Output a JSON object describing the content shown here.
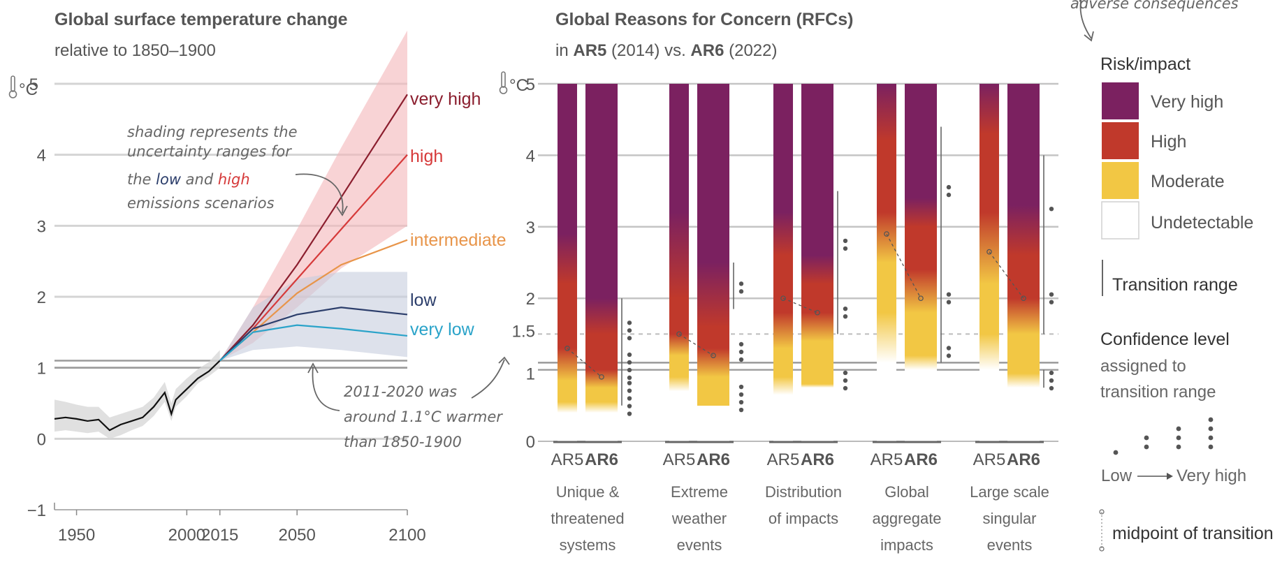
{
  "colors": {
    "very_high": "#7b2160",
    "high": "#c0392b",
    "moderate": "#f2c744",
    "undetectable": "#ffffff",
    "scen_very_high": "#8b1e2e",
    "scen_high": "#d63a3a",
    "scen_intermediate": "#e8954a",
    "scen_low": "#2c3e6b",
    "scen_very_low": "#2aa3c9",
    "historical": "#111111"
  },
  "top_right_note": "adverse consequences",
  "chart_data": [
    {
      "type": "line",
      "title": "Global surface temperature change",
      "subtitle": "relative to 1850–1900",
      "ylabel": "°C",
      "xlim": [
        1940,
        2100
      ],
      "ylim": [
        -1,
        5
      ],
      "xticks": [
        "1950",
        "2000",
        "2015",
        "2050",
        "2100"
      ],
      "yticks": [
        "5",
        "4",
        "3",
        "2",
        "1",
        "0",
        "−1"
      ],
      "ytick_values": [
        5,
        4,
        3,
        2,
        1,
        0,
        -1
      ],
      "xtick_values": [
        1950,
        2000,
        2015,
        2050,
        2100
      ],
      "historical": {
        "x": [
          1940,
          1945,
          1950,
          1955,
          1960,
          1965,
          1970,
          1975,
          1980,
          1985,
          1990,
          1993,
          1995,
          2000,
          2005,
          2010,
          2015
        ],
        "y": [
          0.28,
          0.3,
          0.28,
          0.25,
          0.27,
          0.12,
          0.2,
          0.25,
          0.3,
          0.45,
          0.65,
          0.35,
          0.55,
          0.7,
          0.85,
          0.95,
          1.1
        ],
        "band_low": [
          0.1,
          0.12,
          0.1,
          0.08,
          0.1,
          0.0,
          0.05,
          0.12,
          0.18,
          0.32,
          0.52,
          0.25,
          0.45,
          0.6,
          0.78,
          0.88,
          1.0
        ],
        "band_high": [
          0.55,
          0.52,
          0.48,
          0.45,
          0.45,
          0.3,
          0.35,
          0.4,
          0.45,
          0.58,
          0.8,
          0.5,
          0.7,
          0.85,
          0.98,
          1.08,
          1.25
        ]
      },
      "series": [
        {
          "name": "very high",
          "x": [
            2015,
            2030,
            2050,
            2070,
            2100
          ],
          "y": [
            1.1,
            1.6,
            2.45,
            3.4,
            4.85
          ]
        },
        {
          "name": "high",
          "x": [
            2015,
            2030,
            2050,
            2070,
            2100
          ],
          "y": [
            1.1,
            1.55,
            2.25,
            2.95,
            4.0
          ]
        },
        {
          "name": "intermediate",
          "x": [
            2015,
            2030,
            2050,
            2070,
            2100
          ],
          "y": [
            1.1,
            1.5,
            2.05,
            2.45,
            2.8
          ]
        },
        {
          "name": "low",
          "x": [
            2015,
            2030,
            2050,
            2070,
            2100
          ],
          "y": [
            1.1,
            1.55,
            1.75,
            1.85,
            1.75
          ]
        },
        {
          "name": "very low",
          "x": [
            2015,
            2030,
            2050,
            2070,
            2100
          ],
          "y": [
            1.1,
            1.5,
            1.6,
            1.55,
            1.45
          ]
        }
      ],
      "bands": [
        {
          "scenario": "very high/high",
          "x": [
            2015,
            2030,
            2050,
            2070,
            2100
          ],
          "low": [
            1.1,
            1.35,
            1.85,
            2.4,
            3.0
          ],
          "high": [
            1.1,
            1.85,
            2.95,
            4.1,
            5.75
          ]
        },
        {
          "scenario": "low/very low",
          "x": [
            2015,
            2030,
            2050,
            2070,
            2100
          ],
          "low": [
            1.1,
            1.25,
            1.3,
            1.25,
            1.15
          ],
          "high": [
            1.1,
            1.85,
            2.25,
            2.35,
            2.35
          ]
        }
      ],
      "reference_lines": [
        1.1,
        1.0
      ],
      "annotations": {
        "shading": [
          "shading represents the",
          "uncertainty ranges for",
          "the ",
          "low",
          " and ",
          "high",
          "emissions scenarios"
        ],
        "warming": [
          "2011-2020 was",
          "around 1.1°C warmer",
          "than 1850-1900"
        ]
      }
    },
    {
      "type": "bar",
      "title": "Global Reasons for Concern (RFCs)",
      "subtitle_parts": [
        "in ",
        "AR5",
        " (2014) vs. ",
        "AR6",
        " (2022)"
      ],
      "ylabel": "°C",
      "ylim": [
        0,
        5
      ],
      "yticks": [
        "5",
        "4",
        "3",
        "2",
        "1.5",
        "1",
        "0"
      ],
      "ytick_values": [
        5,
        4,
        3,
        2,
        1.5,
        1,
        0
      ],
      "bar_labels": [
        "AR5",
        "AR6"
      ],
      "categories": [
        {
          "name": [
            "Unique &",
            "threatened",
            "systems"
          ],
          "ar5": {
            "stops": [
              [
                0,
                "u"
              ],
              [
                0.4,
                "u"
              ],
              [
                0.55,
                "m"
              ],
              [
                0.85,
                "m"
              ],
              [
                1.3,
                "h"
              ],
              [
                2.2,
                "h"
              ],
              [
                2.9,
                "v"
              ],
              [
                5,
                "v"
              ]
            ],
            "midpoint": 1.3
          },
          "ar6": {
            "stops": [
              [
                0,
                "u"
              ],
              [
                0.4,
                "u"
              ],
              [
                0.55,
                "m"
              ],
              [
                0.75,
                "m"
              ],
              [
                1.0,
                "h"
              ],
              [
                1.5,
                "h"
              ],
              [
                2.0,
                "v"
              ],
              [
                5,
                "v"
              ]
            ],
            "midpoint": 0.9
          },
          "ranges": [
            [
              0.5,
              2.0
            ]
          ],
          "confidence": [
            [
              1.55,
              3
            ],
            [
              1.05,
              4
            ],
            [
              0.6,
              5
            ]
          ]
        },
        {
          "name": [
            "Extreme",
            "weather",
            "events"
          ],
          "ar5": {
            "stops": [
              [
                0,
                "u"
              ],
              [
                0.7,
                "u"
              ],
              [
                0.9,
                "m"
              ],
              [
                1.2,
                "m"
              ],
              [
                1.5,
                "h"
              ],
              [
                2.0,
                "h"
              ],
              [
                3.2,
                "v"
              ],
              [
                5,
                "v"
              ]
            ],
            "midpoint": 1.5
          },
          "ar6": {
            "stops": [
              [
                0,
                "u"
              ],
              [
                0.5,
                "u"
              ],
              [
                0.5,
                "m"
              ],
              [
                0.9,
                "m"
              ],
              [
                1.3,
                "h"
              ],
              [
                1.6,
                "h"
              ],
              [
                2.5,
                "v"
              ],
              [
                5,
                "v"
              ]
            ],
            "midpoint": 1.2
          },
          "ranges": [
            [
              1.85,
              2.5
            ]
          ],
          "confidence": [
            [
              2.15,
              2
            ],
            [
              1.25,
              3
            ],
            [
              0.6,
              4
            ]
          ]
        },
        {
          "name": [
            "Distribution",
            "of impacts"
          ],
          "ar5": {
            "stops": [
              [
                0,
                "u"
              ],
              [
                0.65,
                "u"
              ],
              [
                0.9,
                "m"
              ],
              [
                1.3,
                "m"
              ],
              [
                1.8,
                "h"
              ],
              [
                2.6,
                "h"
              ],
              [
                3.2,
                "v"
              ],
              [
                5,
                "v"
              ]
            ],
            "midpoint": 2.0
          },
          "ar6": {
            "stops": [
              [
                0,
                "u"
              ],
              [
                0.75,
                "u"
              ],
              [
                0.8,
                "m"
              ],
              [
                1.4,
                "m"
              ],
              [
                1.8,
                "h"
              ],
              [
                2.2,
                "h"
              ],
              [
                2.6,
                "v"
              ],
              [
                5,
                "v"
              ]
            ],
            "midpoint": 1.8
          },
          "ranges": [
            [
              1.5,
              3.5
            ]
          ],
          "confidence": [
            [
              2.75,
              2
            ],
            [
              1.8,
              2
            ],
            [
              0.85,
              3
            ]
          ]
        },
        {
          "name": [
            "Global",
            "aggregate",
            "impacts"
          ],
          "ar5": {
            "stops": [
              [
                0,
                "u"
              ],
              [
                1.1,
                "u"
              ],
              [
                1.8,
                "m"
              ],
              [
                2.5,
                "m"
              ],
              [
                3.2,
                "h"
              ],
              [
                4.2,
                "h"
              ],
              [
                5,
                "v"
              ]
            ],
            "midpoint": 2.9
          },
          "ar6": {
            "stops": [
              [
                0,
                "u"
              ],
              [
                1.0,
                "u"
              ],
              [
                1.2,
                "m"
              ],
              [
                1.8,
                "m"
              ],
              [
                2.4,
                "h"
              ],
              [
                3.0,
                "h"
              ],
              [
                3.4,
                "v"
              ],
              [
                5,
                "v"
              ]
            ],
            "midpoint": 2.0
          },
          "ranges": [
            [
              1.1,
              4.4
            ]
          ],
          "confidence": [
            [
              3.5,
              2
            ],
            [
              2.0,
              2
            ],
            [
              1.25,
              2
            ]
          ]
        },
        {
          "name": [
            "Large scale",
            "singular",
            "events"
          ],
          "ar5": {
            "stops": [
              [
                0,
                "u"
              ],
              [
                1.0,
                "u"
              ],
              [
                1.5,
                "m"
              ],
              [
                2.2,
                "m"
              ],
              [
                3.2,
                "h"
              ],
              [
                4.3,
                "h"
              ],
              [
                5,
                "v"
              ]
            ],
            "midpoint": 2.65
          },
          "ar6": {
            "stops": [
              [
                0,
                "u"
              ],
              [
                0.75,
                "u"
              ],
              [
                0.95,
                "m"
              ],
              [
                1.5,
                "m"
              ],
              [
                2.0,
                "h"
              ],
              [
                2.6,
                "h"
              ],
              [
                3.3,
                "v"
              ],
              [
                5,
                "v"
              ]
            ],
            "midpoint": 2.0
          },
          "ranges": [
            [
              1.5,
              4.0
            ],
            [
              0.75,
              1.0
            ]
          ],
          "confidence": [
            [
              3.25,
              1
            ],
            [
              2.0,
              2
            ],
            [
              0.85,
              3
            ]
          ]
        }
      ]
    }
  ],
  "legend": {
    "title": "Risk/impact",
    "items": [
      "Very high",
      "High",
      "Moderate",
      "Undetectable"
    ],
    "transition_range": "Transition range",
    "confidence_title": "Confidence level",
    "confidence_sub1": "assigned to",
    "confidence_sub2": "transition range",
    "confidence_low": "Low",
    "confidence_high": "Very high",
    "midpoint": "midpoint of transition"
  }
}
